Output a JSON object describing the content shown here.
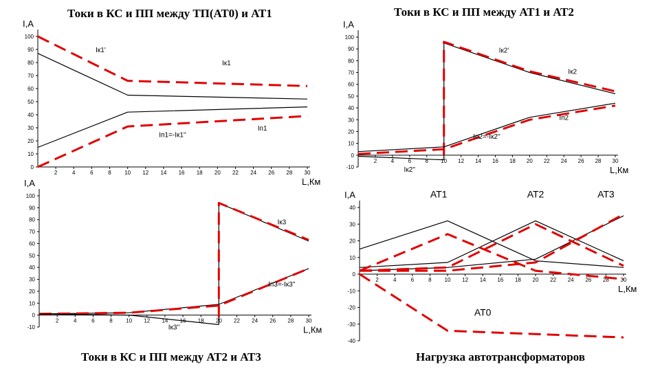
{
  "titles": {
    "tl": "Токи в КС и ПП между ТП(АТ0) и АТ1",
    "tr": "Токи в КС и ПП между АТ1 и АТ2",
    "bl": "Токи в КС и ПП между АТ2 и АТ3",
    "br": "Нагрузка автотрансформаторов"
  },
  "colors": {
    "black": "#000000",
    "red": "#e00000"
  },
  "chart_data": [
    {
      "id": "tl",
      "type": "line",
      "ylabel": "I,A",
      "xlabel": "L,Км",
      "xlim": [
        0,
        30
      ],
      "ylim": [
        0,
        100
      ],
      "xticks": [
        2,
        4,
        6,
        8,
        10,
        12,
        14,
        16,
        18,
        20,
        22,
        24,
        26,
        28,
        30
      ],
      "xtick_labels": [
        "2",
        "4",
        "6",
        "8",
        "10",
        "12",
        "14",
        "16",
        "18",
        "20",
        "22",
        "24",
        "26",
        "28",
        "30"
      ],
      "yticks": [
        0,
        10,
        20,
        30,
        40,
        50,
        60,
        70,
        80,
        90,
        100
      ],
      "ytick_labels": [
        "0",
        "10",
        "20",
        "30",
        "40",
        "50",
        "60",
        "70",
        "80",
        "90",
        "100"
      ],
      "series": [
        {
          "color": "#000000",
          "dash": false,
          "x": [
            0,
            10,
            30
          ],
          "y": [
            87,
            55,
            52
          ]
        },
        {
          "color": "#e00000",
          "dash": true,
          "x": [
            0,
            10,
            30
          ],
          "y": [
            100,
            66,
            62
          ]
        },
        {
          "color": "#000000",
          "dash": false,
          "x": [
            0,
            10,
            30
          ],
          "y": [
            15,
            42,
            46
          ]
        },
        {
          "color": "#e00000",
          "dash": true,
          "x": [
            0,
            10,
            30
          ],
          "y": [
            0,
            31,
            39
          ]
        }
      ],
      "annotations": [
        {
          "text": "Iк1'",
          "x": 7,
          "y": 88
        },
        {
          "text": "Iк1",
          "x": 21,
          "y": 78
        },
        {
          "text": "Iп1",
          "x": 25,
          "y": 28
        },
        {
          "text": "Iп1=-Iк1''",
          "x": 15,
          "y": 23
        }
      ]
    },
    {
      "id": "tr",
      "type": "line",
      "ylabel": "I,A",
      "xlabel": "L,Км",
      "xlim": [
        0,
        30
      ],
      "ylim": [
        -10,
        100
      ],
      "xticks": [
        2,
        4,
        6,
        8,
        10,
        12,
        14,
        16,
        18,
        20,
        22,
        24,
        26,
        28,
        30
      ],
      "xtick_labels": [
        "2",
        "4",
        "6",
        "8",
        "10",
        "12",
        "14",
        "16",
        "18",
        "20",
        "22",
        "24",
        "26",
        "28",
        "30"
      ],
      "yticks": [
        -10,
        0,
        10,
        20,
        30,
        40,
        50,
        60,
        70,
        80,
        90,
        100
      ],
      "ytick_labels": [
        "-10",
        "0",
        "10",
        "20",
        "30",
        "40",
        "50",
        "60",
        "70",
        "80",
        "90",
        "100"
      ],
      "series": [
        {
          "color": "#000000",
          "dash": false,
          "x": [
            10,
            10,
            20,
            30
          ],
          "y": [
            -4,
            95,
            70,
            52
          ]
        },
        {
          "color": "#e00000",
          "dash": true,
          "x": [
            10,
            10,
            20,
            30
          ],
          "y": [
            0,
            96,
            71,
            54
          ]
        },
        {
          "color": "#000000",
          "dash": false,
          "x": [
            0,
            10,
            20,
            30
          ],
          "y": [
            3,
            7,
            32,
            44
          ]
        },
        {
          "color": "#e00000",
          "dash": true,
          "x": [
            0,
            10,
            20,
            30
          ],
          "y": [
            1,
            5,
            30,
            42
          ]
        },
        {
          "color": "#000000",
          "dash": false,
          "x": [
            0,
            10
          ],
          "y": [
            -1,
            -4
          ]
        }
      ],
      "annotations": [
        {
          "text": "Iк2'",
          "x": 17,
          "y": 87
        },
        {
          "text": "Iк2",
          "x": 25,
          "y": 69
        },
        {
          "text": "Iп2",
          "x": 24,
          "y": 30
        },
        {
          "text": "Iп2=-Iк2''",
          "x": 15,
          "y": 14
        },
        {
          "text": "Iк2''",
          "x": 6,
          "y": -14
        }
      ]
    },
    {
      "id": "bl",
      "type": "line",
      "ylabel": "I,A",
      "xlabel": "L,Км",
      "xlim": [
        0,
        30
      ],
      "ylim": [
        -10,
        100
      ],
      "xticks": [
        2,
        4,
        6,
        8,
        10,
        12,
        14,
        16,
        18,
        20,
        22,
        24,
        26,
        28,
        30
      ],
      "xtick_labels": [
        "2",
        "4",
        "6",
        "8",
        "10",
        "12",
        "14",
        "16",
        "18",
        "20",
        "22",
        "24",
        "26",
        "28",
        "30"
      ],
      "yticks": [
        -10,
        0,
        10,
        20,
        30,
        40,
        50,
        60,
        70,
        80,
        90,
        100
      ],
      "ytick_labels": [
        "-10",
        "0",
        "10",
        "20",
        "30",
        "40",
        "50",
        "60",
        "70",
        "80",
        "90",
        "100"
      ],
      "series": [
        {
          "color": "#000000",
          "dash": false,
          "x": [
            20,
            20,
            30
          ],
          "y": [
            -8,
            94,
            62
          ]
        },
        {
          "color": "#e00000",
          "dash": true,
          "x": [
            20,
            20,
            30
          ],
          "y": [
            -2,
            94,
            63
          ]
        },
        {
          "color": "#000000",
          "dash": false,
          "x": [
            0,
            10,
            20,
            30
          ],
          "y": [
            1,
            2,
            9,
            39
          ]
        },
        {
          "color": "#e00000",
          "dash": true,
          "x": [
            0,
            10,
            20,
            30
          ],
          "y": [
            1,
            2,
            8,
            39
          ]
        },
        {
          "color": "#000000",
          "dash": false,
          "x": [
            0,
            10,
            20
          ],
          "y": [
            1,
            0,
            -8
          ]
        }
      ],
      "annotations": [
        {
          "text": "Iк3",
          "x": 27,
          "y": 76
        },
        {
          "text": "Iп3=-Iк3''",
          "x": 27,
          "y": 24
        },
        {
          "text": "Iк3''",
          "x": 15,
          "y": -12
        }
      ]
    },
    {
      "id": "br",
      "type": "line",
      "ylabel": "I,A",
      "xlabel": "L,Км",
      "xlim": [
        0,
        30
      ],
      "ylim": [
        -40,
        40
      ],
      "xticks": [
        2,
        4,
        6,
        8,
        10,
        12,
        14,
        16,
        18,
        20,
        22,
        24,
        26,
        28,
        30
      ],
      "xtick_labels": [
        "2",
        "4",
        "6",
        "8",
        "10",
        "12",
        "14",
        "16",
        "18",
        "20",
        "22",
        "24",
        "26",
        "28",
        "30"
      ],
      "yticks": [
        -40,
        -30,
        -20,
        -10,
        0,
        10,
        20,
        30,
        40
      ],
      "ytick_labels": [
        "-40",
        "-30",
        "-20",
        "-10",
        "0",
        "10",
        "20",
        "30",
        "40"
      ],
      "series": [
        {
          "color": "#000000",
          "dash": false,
          "x": [
            0,
            10,
            20,
            30
          ],
          "y": [
            15,
            32,
            8,
            4
          ]
        },
        {
          "color": "#000000",
          "dash": false,
          "x": [
            0,
            10,
            20,
            30
          ],
          "y": [
            4,
            7,
            32,
            8
          ]
        },
        {
          "color": "#000000",
          "dash": false,
          "x": [
            0,
            10,
            20,
            30
          ],
          "y": [
            2,
            4,
            9,
            35
          ]
        },
        {
          "color": "#e00000",
          "dash": true,
          "x": [
            0,
            10,
            20,
            30
          ],
          "y": [
            2,
            24,
            2,
            -3
          ]
        },
        {
          "color": "#e00000",
          "dash": true,
          "x": [
            0,
            10,
            20,
            30
          ],
          "y": [
            2,
            4,
            30,
            5
          ]
        },
        {
          "color": "#e00000",
          "dash": true,
          "x": [
            0,
            10,
            20,
            30
          ],
          "y": [
            2,
            2,
            7,
            36
          ]
        },
        {
          "color": "#e00000",
          "dash": true,
          "x": [
            0,
            10,
            30
          ],
          "y": [
            0,
            -34,
            -38
          ]
        }
      ],
      "annotations": [
        {
          "text": "АТ1",
          "x": 9,
          "y": 46
        },
        {
          "text": "АТ2",
          "x": 20,
          "y": 46
        },
        {
          "text": "АТ3",
          "x": 28,
          "y": 46
        },
        {
          "text": "АТ0",
          "x": 14,
          "y": -25
        }
      ]
    }
  ]
}
